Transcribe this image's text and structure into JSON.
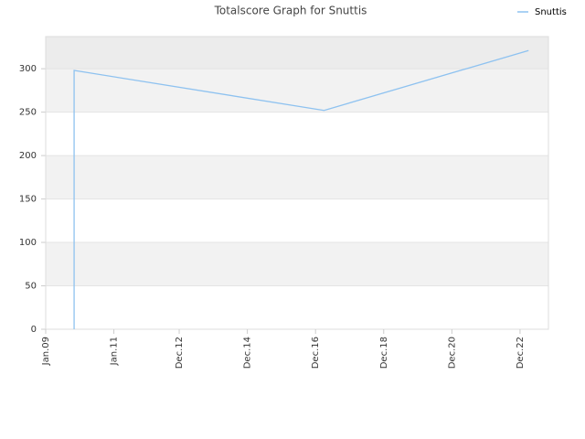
{
  "chart_data": {
    "type": "line",
    "title": "Totalscore Graph for Snuttis",
    "x": [
      "2009-11",
      "2009-11",
      "2017-03",
      "2023-03"
    ],
    "series": [
      {
        "name": "Snuttis",
        "color": "#8ec2f0",
        "values": [
          0,
          298,
          252,
          321
        ]
      }
    ],
    "xlim": [
      "2009-01",
      "2023-10"
    ],
    "xticks": [
      {
        "value": "2009-01",
        "label": "Jan.09"
      },
      {
        "value": "2011-01",
        "label": "Jan.11"
      },
      {
        "value": "2012-12",
        "label": "Dec.12"
      },
      {
        "value": "2014-12",
        "label": "Dec.14"
      },
      {
        "value": "2016-12",
        "label": "Dec.16"
      },
      {
        "value": "2018-12",
        "label": "Dec.18"
      },
      {
        "value": "2020-12",
        "label": "Dec.20"
      },
      {
        "value": "2022-12",
        "label": "Dec.22"
      }
    ],
    "ylim": [
      0,
      337
    ],
    "yticks": [
      0,
      50,
      100,
      150,
      200,
      250,
      300
    ],
    "grid": true,
    "legend": "top-right"
  }
}
